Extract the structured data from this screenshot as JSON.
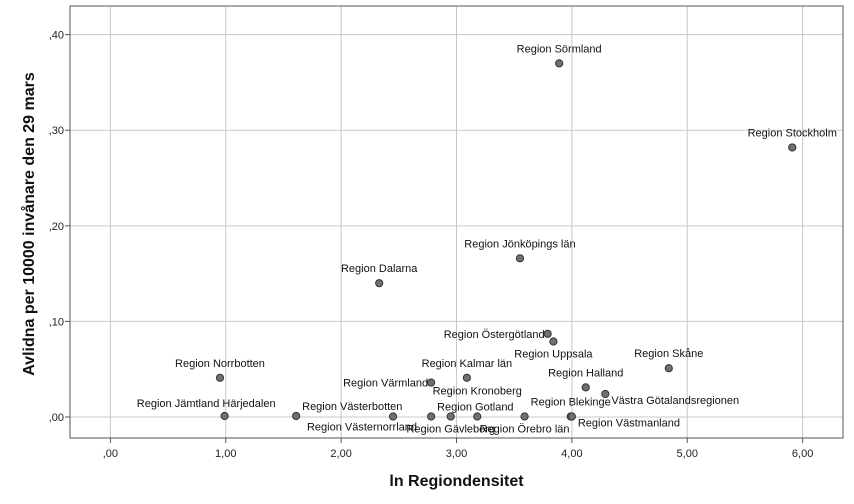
{
  "chart_data": {
    "type": "scatter",
    "title": "",
    "xlabel": "ln Regiondensitet",
    "ylabel": "Avlidna per 10000 invånare den 29 mars",
    "xlim": [
      -0.35,
      6.35
    ],
    "ylim": [
      -0.022,
      0.43
    ],
    "x_ticks": [
      0,
      1,
      2,
      3,
      4,
      5,
      6
    ],
    "x_tick_labels": [
      ",00",
      "1,00",
      "2,00",
      "3,00",
      "4,00",
      "5,00",
      "6,00"
    ],
    "y_ticks": [
      0,
      0.1,
      0.2,
      0.3,
      0.4
    ],
    "y_tick_labels": [
      ",00",
      ",10",
      ",20",
      ",30",
      ",40"
    ],
    "grid": true,
    "marker_color": "#707070",
    "points": [
      {
        "label": "Region Sörmland",
        "x": 3.89,
        "y": 0.37,
        "lpos": "above"
      },
      {
        "label": "Region Stockholm",
        "x": 5.91,
        "y": 0.282,
        "lpos": "above"
      },
      {
        "label": "Region Jönköpings län",
        "x": 3.55,
        "y": 0.166,
        "lpos": "above"
      },
      {
        "label": "Region Dalarna",
        "x": 2.33,
        "y": 0.14,
        "lpos": "above"
      },
      {
        "label": "Region Östergötland",
        "x": 3.79,
        "y": 0.087,
        "lpos": "left"
      },
      {
        "label": "Region Uppsala",
        "x": 3.84,
        "y": 0.079,
        "lpos": "below"
      },
      {
        "label": "Region Skåne",
        "x": 4.84,
        "y": 0.051,
        "lpos": "above"
      },
      {
        "label": "Region Norrbotten",
        "x": 0.95,
        "y": 0.041,
        "lpos": "above"
      },
      {
        "label": "Region Kalmar län",
        "x": 3.09,
        "y": 0.041,
        "lpos": "above"
      },
      {
        "label": "Region Värmland",
        "x": 2.78,
        "y": 0.036,
        "lpos": "left"
      },
      {
        "label": "Region Halland",
        "x": 4.12,
        "y": 0.031,
        "lpos": "above"
      },
      {
        "label": "Region Kronoberg",
        "x": 3.18,
        "y": 0.0005,
        "lpos": "above-far"
      },
      {
        "label": "Västra Götalandsregionen",
        "x": 4.29,
        "y": 0.024,
        "lpos": "right-below"
      },
      {
        "label": "Region Jämtland Härjedalen",
        "x": 0.99,
        "y": 0.001,
        "lpos": "above-left"
      },
      {
        "label": "Region Västerbotten",
        "x": 1.61,
        "y": 0.001,
        "lpos": "above-right"
      },
      {
        "label": "Region Västernorrland",
        "x": 2.45,
        "y": 0.0005,
        "lpos": "below-left"
      },
      {
        "label": "Region Gotland",
        "x": 2.78,
        "y": 0.0005,
        "lpos": "above-right"
      },
      {
        "label": "Region Gävleborg",
        "x": 2.95,
        "y": 0.0005,
        "lpos": "below"
      },
      {
        "label": "Region Örebro län",
        "x": 3.59,
        "y": 0.0005,
        "lpos": "below"
      },
      {
        "label": "Region Blekinge",
        "x": 3.99,
        "y": 0.0005,
        "lpos": "above"
      },
      {
        "label": "Region Västmanland",
        "x": 4.0,
        "y": 0.0005,
        "lpos": "right-below"
      }
    ]
  }
}
